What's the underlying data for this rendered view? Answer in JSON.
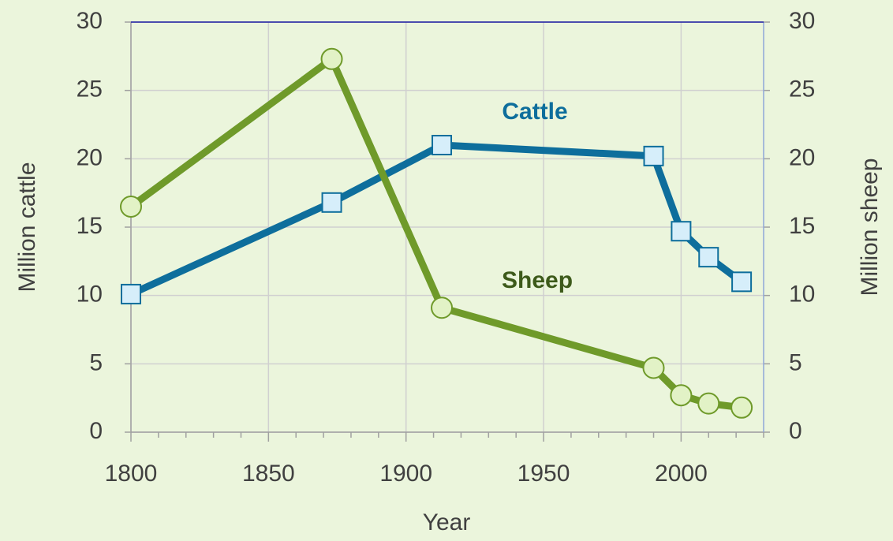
{
  "chart_data": {
    "type": "line",
    "xlabel": "Year",
    "ylabel": "Million cattle",
    "y2label": "Million sheep",
    "x": [
      1800,
      1873,
      1913,
      1990,
      2000,
      2010,
      2022
    ],
    "xlim": [
      1800,
      2030
    ],
    "xticks": [
      1800,
      1850,
      1900,
      1950,
      2000
    ],
    "xminorticks": [
      1810,
      1820,
      1830,
      1840,
      1860,
      1870,
      1880,
      1890,
      1910,
      1920,
      1930,
      1940,
      1960,
      1970,
      1980,
      1990,
      2010,
      2020,
      2030
    ],
    "ylim": [
      0,
      30
    ],
    "yticks": [
      0,
      5,
      10,
      15,
      20,
      25,
      30
    ],
    "y2lim": [
      0,
      30
    ],
    "y2ticks": [
      0,
      5,
      10,
      15,
      20,
      25,
      30
    ],
    "grid": true,
    "series": [
      {
        "name": "Cattle",
        "color": "#0e6e9c",
        "marker": "square",
        "values": [
          10.1,
          16.8,
          21.0,
          20.2,
          14.7,
          12.8,
          11.0
        ]
      },
      {
        "name": "Sheep",
        "color": "#6f9a2a",
        "marker": "circle",
        "axis": "y2",
        "values": [
          16.5,
          27.3,
          9.1,
          4.7,
          2.7,
          2.1,
          1.8
        ]
      }
    ]
  }
}
